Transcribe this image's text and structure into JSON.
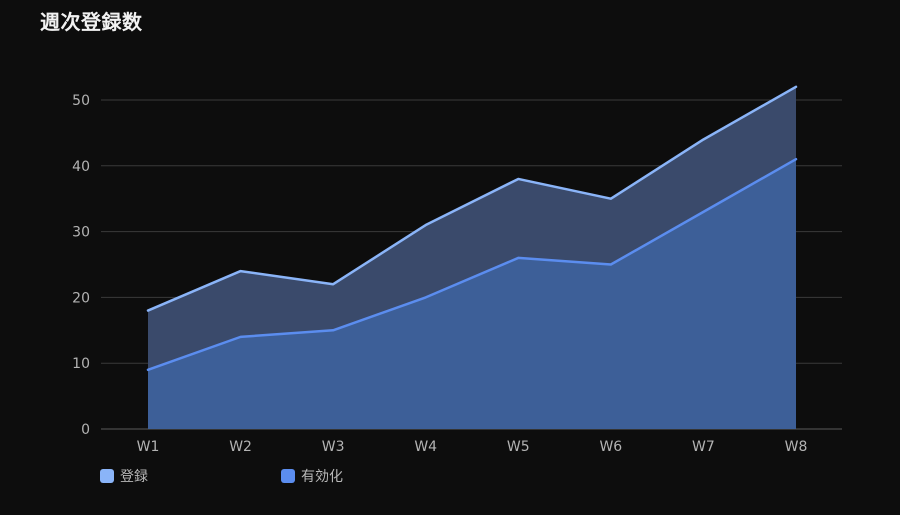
{
  "chart_data": {
    "type": "area",
    "title": "週次登録数",
    "xlabel": "",
    "ylabel": "",
    "categories": [
      "W1",
      "W2",
      "W3",
      "W4",
      "W5",
      "W6",
      "W7",
      "W8"
    ],
    "series": [
      {
        "name": "登録",
        "values": [
          18,
          24,
          22,
          31,
          38,
          35,
          44,
          52
        ],
        "color": "#8ab4f8",
        "fill": "#3a4a6b"
      },
      {
        "name": "有効化",
        "values": [
          9,
          14,
          15,
          20,
          26,
          25,
          33,
          41
        ],
        "color": "#5b8def",
        "fill": "#3d5f98"
      }
    ],
    "ylim": [
      0,
      50
    ],
    "yticks": [
      0,
      10,
      20,
      30,
      40,
      50
    ],
    "grid": true,
    "legend_position": "bottom-left"
  }
}
